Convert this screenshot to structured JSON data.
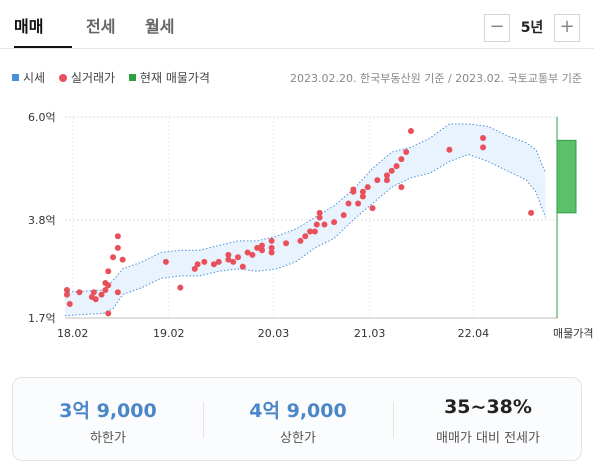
{
  "tabs": [
    {
      "label": "매매",
      "active": true
    },
    {
      "label": "전세",
      "active": false
    },
    {
      "label": "월세",
      "active": false
    }
  ],
  "period": {
    "minus_label": "−",
    "value": "5년",
    "plus_label": "+"
  },
  "legend": {
    "items": [
      {
        "label": "시세",
        "color": "#4a90d9",
        "shape": "square"
      },
      {
        "label": "실거래가",
        "color": "#e8505b",
        "shape": "dot"
      },
      {
        "label": "현재 매물가격",
        "color": "#2ea043",
        "shape": "square"
      }
    ],
    "source": "2023.02.20. 한국부동산원 기준 / 2023.02. 국토교통부 기준"
  },
  "chart_data": {
    "type": "scatter",
    "y_ticks": [
      "6.0억",
      "3.8억",
      "1.7억"
    ],
    "y_tick_values": [
      6.0,
      3.8,
      1.7
    ],
    "ylim": [
      1.7,
      6.0
    ],
    "x_tick_labels": [
      "18.02",
      "19.02",
      "20.03",
      "21.03",
      "22.04",
      "매물가격"
    ],
    "x_tick_positions": [
      2018.08,
      2019.08,
      2020.17,
      2021.17,
      2022.25
    ],
    "xlim": [
      2018.0,
      2023.13
    ],
    "grid": true,
    "market_band": {
      "color": "#4a90d9",
      "x": [
        2018.0,
        2018.4,
        2018.5,
        2018.6,
        2018.8,
        2019.0,
        2019.2,
        2019.4,
        2019.6,
        2019.8,
        2020.0,
        2020.2,
        2020.4,
        2020.6,
        2020.8,
        2021.0,
        2021.2,
        2021.4,
        2021.6,
        2021.8,
        2022.0,
        2022.2,
        2022.4,
        2022.6,
        2022.8,
        2022.9,
        2023.0
      ],
      "upper": [
        2.25,
        2.3,
        2.5,
        2.75,
        2.9,
        3.1,
        3.15,
        3.15,
        3.25,
        3.35,
        3.35,
        3.45,
        3.6,
        3.85,
        4.1,
        4.45,
        4.9,
        5.25,
        5.35,
        5.55,
        5.85,
        5.85,
        5.8,
        5.6,
        5.45,
        5.3,
        4.8
      ],
      "lower": [
        1.75,
        1.8,
        1.9,
        2.2,
        2.35,
        2.55,
        2.6,
        2.6,
        2.7,
        2.75,
        2.7,
        2.75,
        2.9,
        3.2,
        3.4,
        3.8,
        4.15,
        4.5,
        4.7,
        4.8,
        5.05,
        5.2,
        5.05,
        4.85,
        4.65,
        4.4,
        3.85
      ]
    },
    "transactions": {
      "color": "#e8505b",
      "points": [
        [
          2018.02,
          2.3
        ],
        [
          2018.02,
          2.2
        ],
        [
          2018.05,
          2.0
        ],
        [
          2018.15,
          2.25
        ],
        [
          2018.28,
          2.15
        ],
        [
          2018.3,
          2.25
        ],
        [
          2018.32,
          2.1
        ],
        [
          2018.38,
          2.2
        ],
        [
          2018.42,
          2.3
        ],
        [
          2018.42,
          2.45
        ],
        [
          2018.45,
          1.8
        ],
        [
          2018.45,
          2.4
        ],
        [
          2018.45,
          2.7
        ],
        [
          2018.5,
          3.0
        ],
        [
          2018.55,
          3.2
        ],
        [
          2018.55,
          3.45
        ],
        [
          2018.55,
          2.25
        ],
        [
          2018.6,
          2.95
        ],
        [
          2019.05,
          2.9
        ],
        [
          2019.2,
          2.35
        ],
        [
          2019.35,
          2.75
        ],
        [
          2019.38,
          2.85
        ],
        [
          2019.45,
          2.9
        ],
        [
          2019.55,
          2.85
        ],
        [
          2019.6,
          2.9
        ],
        [
          2019.7,
          2.95
        ],
        [
          2019.7,
          3.05
        ],
        [
          2019.75,
          2.9
        ],
        [
          2019.8,
          3.0
        ],
        [
          2019.85,
          2.8
        ],
        [
          2019.9,
          3.1
        ],
        [
          2019.95,
          3.05
        ],
        [
          2020.0,
          3.2
        ],
        [
          2020.05,
          3.15
        ],
        [
          2020.05,
          3.25
        ],
        [
          2020.15,
          3.1
        ],
        [
          2020.15,
          3.2
        ],
        [
          2020.15,
          3.35
        ],
        [
          2020.3,
          3.3
        ],
        [
          2020.45,
          3.35
        ],
        [
          2020.5,
          3.45
        ],
        [
          2020.55,
          3.55
        ],
        [
          2020.6,
          3.55
        ],
        [
          2020.62,
          3.7
        ],
        [
          2020.65,
          3.85
        ],
        [
          2020.65,
          3.95
        ],
        [
          2020.7,
          3.7
        ],
        [
          2020.8,
          3.75
        ],
        [
          2020.9,
          3.9
        ],
        [
          2020.95,
          4.15
        ],
        [
          2021.0,
          4.4
        ],
        [
          2021.0,
          4.45
        ],
        [
          2021.05,
          4.15
        ],
        [
          2021.1,
          4.3
        ],
        [
          2021.1,
          4.4
        ],
        [
          2021.15,
          4.5
        ],
        [
          2021.2,
          4.05
        ],
        [
          2021.25,
          4.65
        ],
        [
          2021.35,
          4.75
        ],
        [
          2021.35,
          4.65
        ],
        [
          2021.4,
          4.85
        ],
        [
          2021.45,
          4.95
        ],
        [
          2021.5,
          5.1
        ],
        [
          2021.55,
          5.25
        ],
        [
          2021.5,
          4.5
        ],
        [
          2021.6,
          5.7
        ],
        [
          2022.0,
          5.3
        ],
        [
          2022.35,
          5.55
        ],
        [
          2022.35,
          5.35
        ],
        [
          2022.85,
          3.95
        ]
      ]
    },
    "listing_price": {
      "color": "#2ea043",
      "low": 3.95,
      "high": 5.5
    }
  },
  "summary": [
    {
      "value": "3억 9,000",
      "label": "하한가"
    },
    {
      "value": "4억 9,000",
      "label": "상한가"
    },
    {
      "value": "35~38%",
      "label": "매매가 대비 전세가"
    }
  ]
}
